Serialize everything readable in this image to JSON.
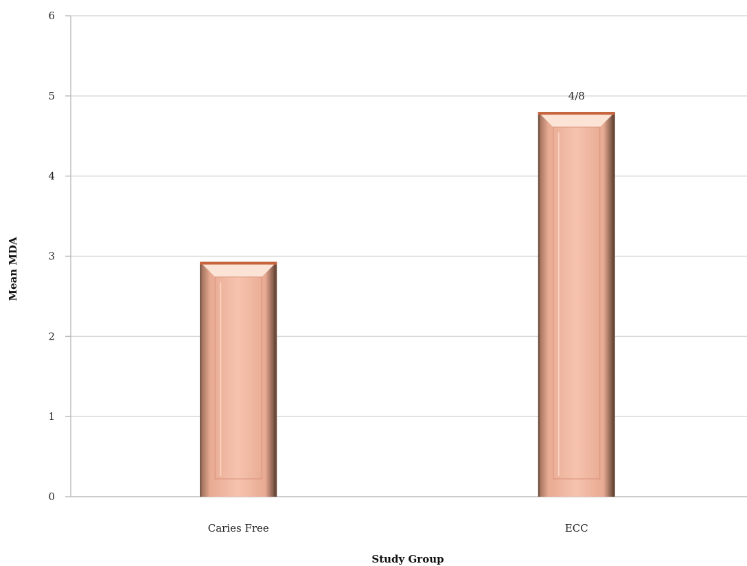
{
  "chart_data": {
    "type": "bar",
    "categories": [
      "Caries Free",
      "ECC"
    ],
    "values": [
      2.93,
      4.8
    ],
    "data_labels": [
      "",
      "4/8"
    ],
    "xlabel": "Study Group",
    "ylabel": "Mean MDA",
    "ylim": [
      0,
      6
    ],
    "yticks": [
      "0",
      "1",
      "2",
      "3",
      "4",
      "5",
      "6"
    ],
    "grid": true,
    "legend": "none",
    "bar_color": "#f0b49c",
    "bar_edge_color": "#c8643c",
    "bar_shadow_color": "#6b4a3a"
  }
}
